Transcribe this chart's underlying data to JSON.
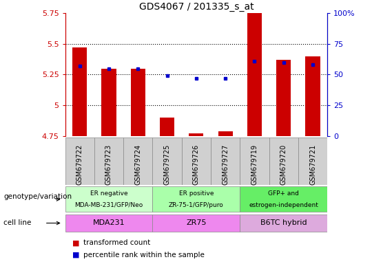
{
  "title": "GDS4067 / 201335_s_at",
  "samples": [
    "GSM679722",
    "GSM679723",
    "GSM679724",
    "GSM679725",
    "GSM679726",
    "GSM679727",
    "GSM679719",
    "GSM679720",
    "GSM679721"
  ],
  "red_values": [
    5.47,
    5.3,
    5.3,
    4.9,
    4.77,
    4.79,
    5.75,
    5.37,
    5.4
  ],
  "blue_values": [
    5.32,
    5.3,
    5.3,
    5.24,
    5.22,
    5.22,
    5.36,
    5.35,
    5.33
  ],
  "ymin": 4.75,
  "ymax": 5.75,
  "yticks": [
    4.75,
    5.0,
    5.25,
    5.5,
    5.75
  ],
  "ytick_labels": [
    "4.75",
    "5",
    "5.25",
    "5.5",
    "5.75"
  ],
  "right_yticks_pct": [
    0,
    25,
    50,
    75,
    100
  ],
  "right_ytick_labels": [
    "0",
    "25",
    "50",
    "75",
    "100%"
  ],
  "red_color": "#cc0000",
  "blue_color": "#0000cc",
  "bar_width": 0.5,
  "xtick_bg": "#d0d0d0",
  "genotype_groups": [
    {
      "label": "ER negative\nMDA-MB-231/GFP/Neo",
      "start": 0,
      "end": 3,
      "color": "#ccffcc"
    },
    {
      "label": "ER positive\nZR-75-1/GFP/puro",
      "start": 3,
      "end": 6,
      "color": "#aaffaa"
    },
    {
      "label": "GFP+ and\nestrogen-independent",
      "start": 6,
      "end": 9,
      "color": "#66ee66"
    }
  ],
  "cell_line_groups": [
    {
      "label": "MDA231",
      "start": 0,
      "end": 3,
      "color": "#ee88ee"
    },
    {
      "label": "ZR75",
      "start": 3,
      "end": 6,
      "color": "#ee88ee"
    },
    {
      "label": "B6TC hybrid",
      "start": 6,
      "end": 9,
      "color": "#ddaadd"
    }
  ],
  "legend_red": "transformed count",
  "legend_blue": "percentile rank within the sample",
  "genotype_label": "genotype/variation",
  "cell_line_label": "cell line",
  "grid_yticks": [
    5.0,
    5.25,
    5.5
  ],
  "hgrid_color": "black",
  "hgrid_style": ":",
  "hgrid_lw": 0.8
}
